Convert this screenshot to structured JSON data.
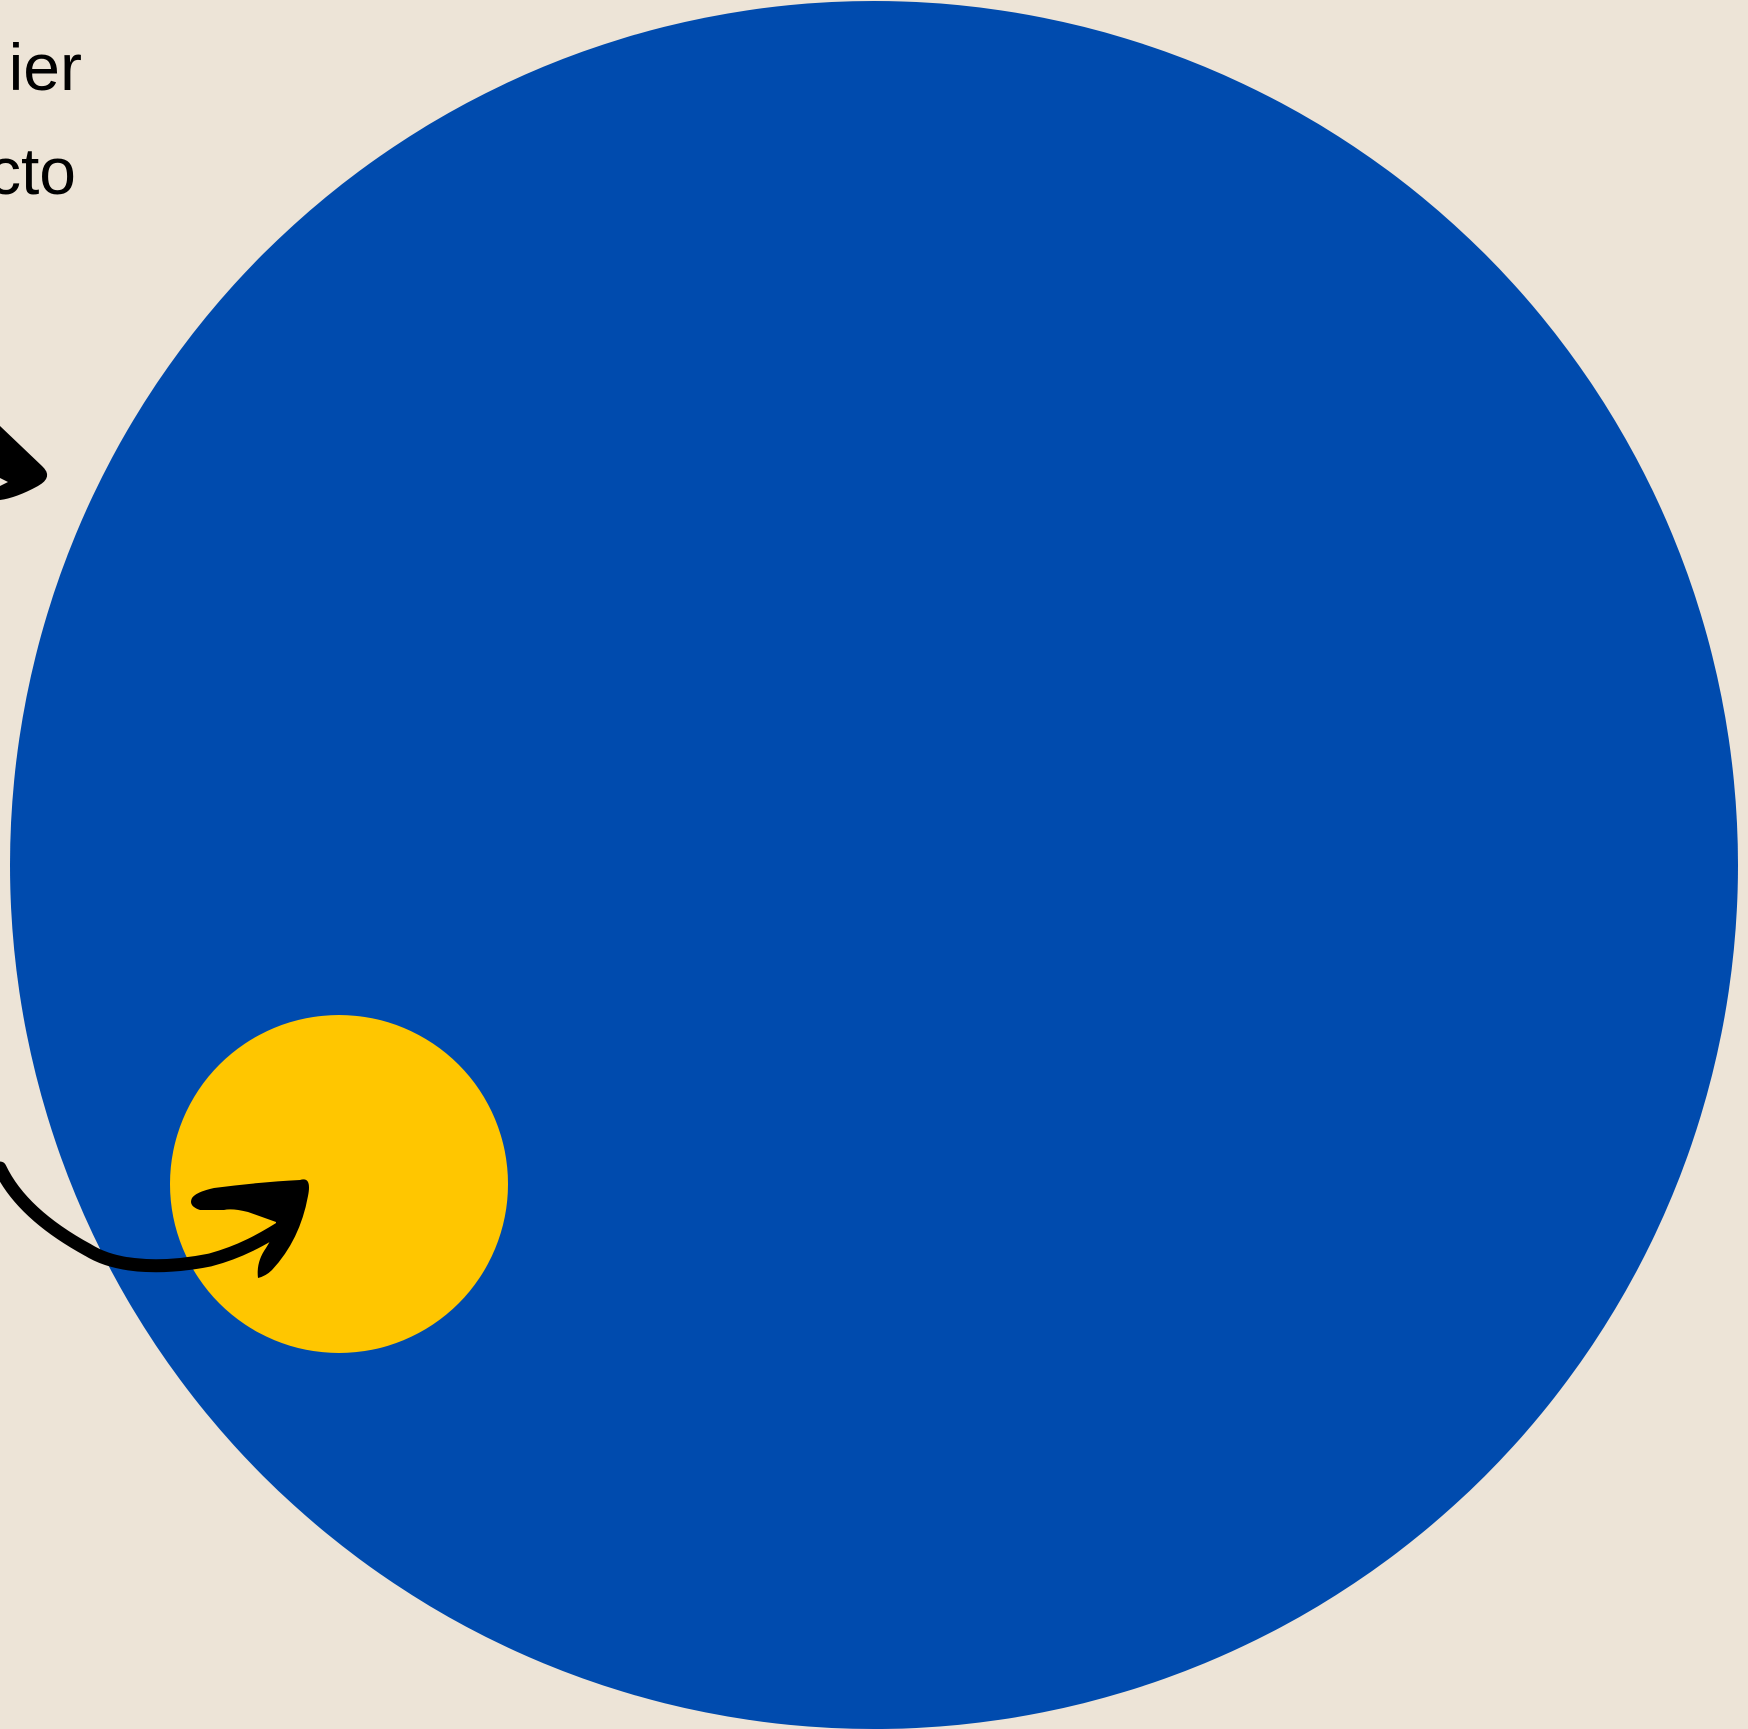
{
  "colors": {
    "background": "#EDE4D7",
    "large_circle": "#004BAE",
    "small_circle": "#FFC600",
    "arrow": "#000000",
    "text": "#000000"
  },
  "labels": {
    "line_1": "ier",
    "line_2": "cto"
  },
  "icons": {
    "upper_arrow": "arrowhead-icon",
    "lower_arrow": "curved-arrow-icon"
  }
}
